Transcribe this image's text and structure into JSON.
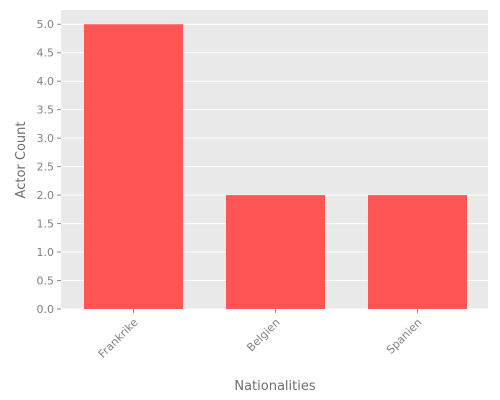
{
  "chart_data": {
    "type": "bar",
    "title": "",
    "xlabel": "Nationalities",
    "ylabel": "Actor Count",
    "categories": [
      "Frankrike",
      "Belgien",
      "Spanien"
    ],
    "values": [
      5,
      2,
      2
    ],
    "ylim": [
      0,
      5.25
    ],
    "yticks": [
      "0.0",
      "0.5",
      "1.0",
      "1.5",
      "2.0",
      "2.5",
      "3.0",
      "3.5",
      "4.0",
      "4.5",
      "5.0"
    ],
    "grid": true,
    "legend": "none",
    "colors": {
      "bar": "#ff5555",
      "background": "#e9e9e9",
      "grid": "#ffffff",
      "text": "#808080"
    }
  }
}
